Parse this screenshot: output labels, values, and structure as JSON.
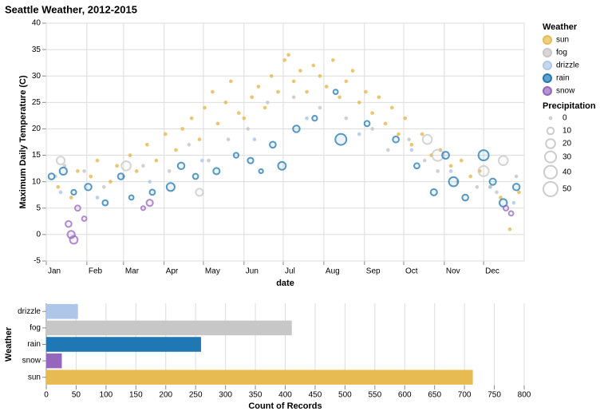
{
  "chart_data": [
    {
      "type": "scatter",
      "title": "Seattle Weather, 2012-2015",
      "x_label": "date",
      "y_label": "Maximum Daily Temperature (C)",
      "xlim": [
        1,
        366
      ],
      "xticks": [
        {
          "value": 1,
          "label": "Jan"
        },
        {
          "value": 32,
          "label": "Feb"
        },
        {
          "value": 60,
          "label": "Mar"
        },
        {
          "value": 91,
          "label": "Apr"
        },
        {
          "value": 121,
          "label": "May"
        },
        {
          "value": 152,
          "label": "Jun"
        },
        {
          "value": 182,
          "label": "Jul"
        },
        {
          "value": 213,
          "label": "Aug"
        },
        {
          "value": 244,
          "label": "Sep"
        },
        {
          "value": 274,
          "label": "Oct"
        },
        {
          "value": 305,
          "label": "Nov"
        },
        {
          "value": 335,
          "label": "Dec"
        }
      ],
      "ylim": [
        -5,
        40
      ],
      "yticks": [
        -5,
        0,
        5,
        10,
        15,
        20,
        25,
        30,
        35,
        40
      ],
      "grid": true,
      "legend_title": "Weather",
      "size_legend_title": "Precipitation",
      "size_legend": [
        0,
        10,
        20,
        30,
        40,
        50
      ],
      "series": [
        {
          "name": "sun",
          "color": "#e7ba52",
          "x": [
            10,
            20,
            25,
            35,
            40,
            50,
            55,
            65,
            70,
            78,
            85,
            92,
            100,
            105,
            112,
            118,
            122,
            128,
            132,
            138,
            142,
            148,
            152,
            158,
            163,
            168,
            173,
            178,
            183,
            186,
            190,
            195,
            200,
            205,
            210,
            215,
            220,
            225,
            230,
            235,
            240,
            245,
            250,
            255,
            260,
            265,
            270,
            275,
            280,
            288,
            295,
            302,
            310,
            318,
            325,
            332,
            340,
            348,
            355,
            362
          ],
          "values": [
            9,
            7,
            12,
            11,
            14,
            10,
            13,
            15,
            12,
            17,
            14,
            19,
            16,
            20,
            22,
            18,
            24,
            27,
            21,
            25,
            29,
            23,
            22,
            26,
            28,
            24,
            30,
            27,
            33,
            34,
            29,
            31,
            27,
            32,
            30,
            28,
            33,
            26,
            29,
            31,
            25,
            27,
            23,
            26,
            21,
            24,
            19,
            22,
            17,
            19,
            15,
            16,
            13,
            14,
            11,
            12,
            9,
            7,
            1,
            8
          ],
          "sizes": [
            0,
            0,
            0,
            0,
            0,
            0,
            0,
            0,
            0,
            0,
            0,
            0,
            0,
            0,
            0,
            0,
            0,
            0,
            0,
            0,
            0,
            0,
            0,
            0,
            0,
            0,
            0,
            0,
            0,
            0,
            0,
            0,
            0,
            0,
            0,
            0,
            0,
            0,
            0,
            0,
            0,
            0,
            0,
            0,
            0,
            0,
            0,
            0,
            0,
            0,
            0,
            0,
            0,
            0,
            0,
            0,
            0,
            0,
            0,
            0
          ]
        },
        {
          "name": "fog",
          "color": "#c7c7c7",
          "x": [
            8,
            15,
            30,
            45,
            60,
            75,
            95,
            110,
            125,
            140,
            155,
            170,
            190,
            210,
            230,
            250,
            262,
            278,
            290,
            300,
            315,
            330,
            345,
            360,
            12,
            62,
            118,
            292,
            300,
            335,
            350
          ],
          "values": [
            11,
            13,
            12,
            9,
            11,
            13,
            12,
            17,
            14,
            18,
            20,
            25,
            26,
            24,
            22,
            20,
            16,
            18,
            14,
            12,
            10,
            9,
            8,
            11,
            14,
            13,
            8,
            18,
            15,
            12,
            14
          ],
          "sizes": [
            0,
            0,
            0,
            0,
            0,
            0,
            0,
            0,
            0,
            0,
            0,
            0,
            0,
            0,
            0,
            0,
            0,
            0,
            0,
            0,
            0,
            0,
            0,
            0,
            15,
            20,
            12,
            20,
            30,
            25,
            20
          ]
        },
        {
          "name": "drizzle",
          "color": "#aec7e8",
          "x": [
            12,
            40,
            80,
            120,
            160,
            200,
            240,
            280,
            310,
            340,
            358
          ],
          "values": [
            8,
            7,
            10,
            14,
            18,
            22,
            19,
            16,
            12,
            9,
            6
          ],
          "sizes": [
            0,
            0,
            0,
            0,
            0,
            0,
            0,
            0,
            0,
            0,
            0
          ]
        },
        {
          "name": "rain",
          "color": "#1f77b4",
          "x": [
            5,
            14,
            22,
            33,
            46,
            58,
            66,
            82,
            96,
            104,
            115,
            131,
            146,
            157,
            165,
            174,
            181,
            192,
            206,
            222,
            226,
            246,
            268,
            284,
            297,
            306,
            312,
            321,
            335,
            342,
            350,
            360
          ],
          "values": [
            11,
            12,
            8,
            9,
            6,
            11,
            7,
            8,
            9,
            13,
            11,
            12,
            15,
            14,
            12,
            17,
            13,
            20,
            22,
            27,
            18,
            21,
            18,
            13,
            8,
            15,
            10,
            7,
            15,
            10,
            6,
            9
          ],
          "sizes": [
            8,
            12,
            5,
            10,
            6,
            8,
            4,
            6,
            15,
            10,
            6,
            9,
            5,
            7,
            3,
            8,
            14,
            10,
            5,
            4,
            29,
            6,
            8,
            6,
            9,
            11,
            20,
            8,
            25,
            9,
            13,
            10
          ]
        },
        {
          "name": "snow",
          "color": "#9467bd",
          "x": [
            18,
            20,
            22,
            25,
            30,
            75,
            80,
            352,
            356
          ],
          "values": [
            2,
            0,
            -1,
            5,
            3,
            5,
            6,
            5,
            4
          ],
          "sizes": [
            8,
            12,
            14,
            6,
            4,
            3,
            9,
            5,
            4
          ]
        }
      ]
    },
    {
      "type": "hbar",
      "x_label": "Count of Records",
      "y_label": "Weather",
      "categories": [
        "drizzle",
        "fog",
        "rain",
        "snow",
        "sun"
      ],
      "values": [
        53,
        411,
        259,
        26,
        714
      ],
      "colors": [
        "#aec7e8",
        "#c7c7c7",
        "#1f77b4",
        "#9467bd",
        "#e7ba52"
      ],
      "xlim": [
        0,
        800
      ],
      "xticks": [
        0,
        50,
        100,
        150,
        200,
        250,
        300,
        350,
        400,
        450,
        500,
        550,
        600,
        650,
        700,
        750,
        800
      ],
      "grid": true
    }
  ]
}
